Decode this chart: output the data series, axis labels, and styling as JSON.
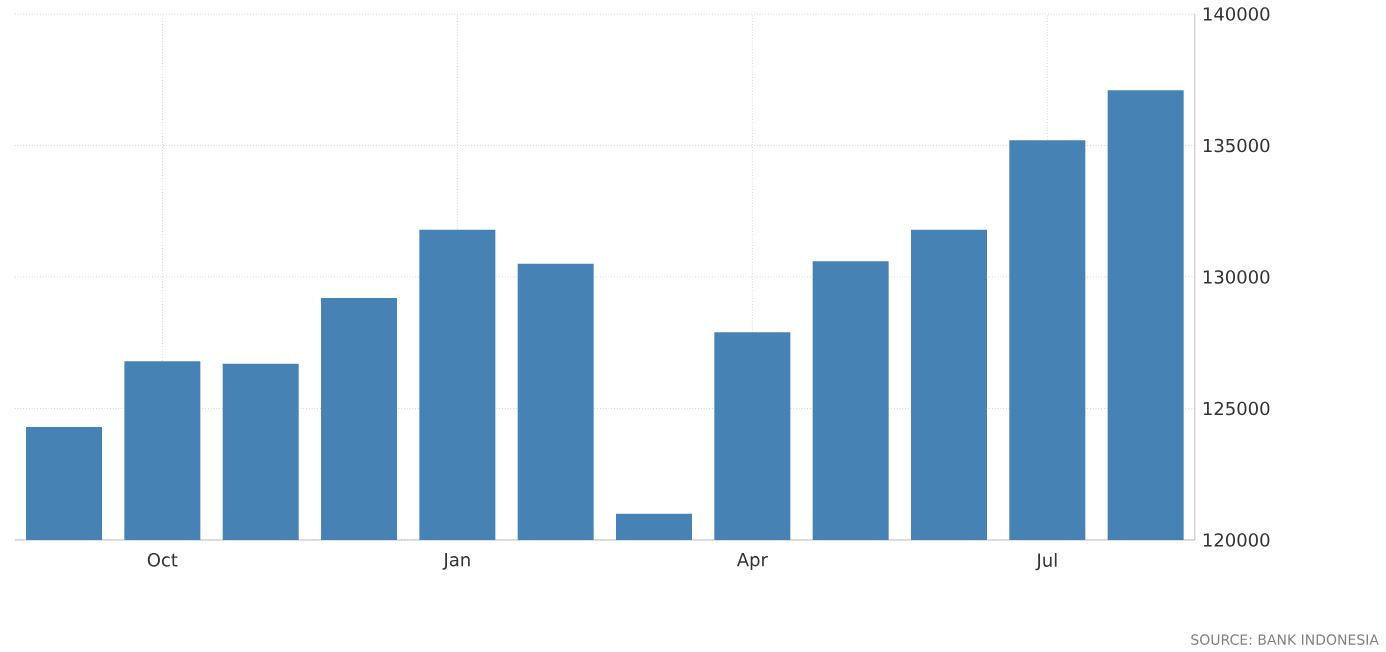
{
  "chart_data": {
    "type": "bar",
    "categories": [
      null,
      "Oct",
      null,
      null,
      "Jan",
      null,
      null,
      "Apr",
      null,
      null,
      "Jul",
      null
    ],
    "values": [
      124300,
      126800,
      126700,
      129200,
      131800,
      130500,
      121000,
      127900,
      130600,
      131800,
      135200,
      137100
    ],
    "color": "#4682b4",
    "ylim": [
      120000,
      140000
    ],
    "yticks": [
      120000,
      125000,
      130000,
      135000,
      140000
    ],
    "grid": true,
    "annotations": [
      "SOURCE: BANK INDONESIA"
    ]
  }
}
